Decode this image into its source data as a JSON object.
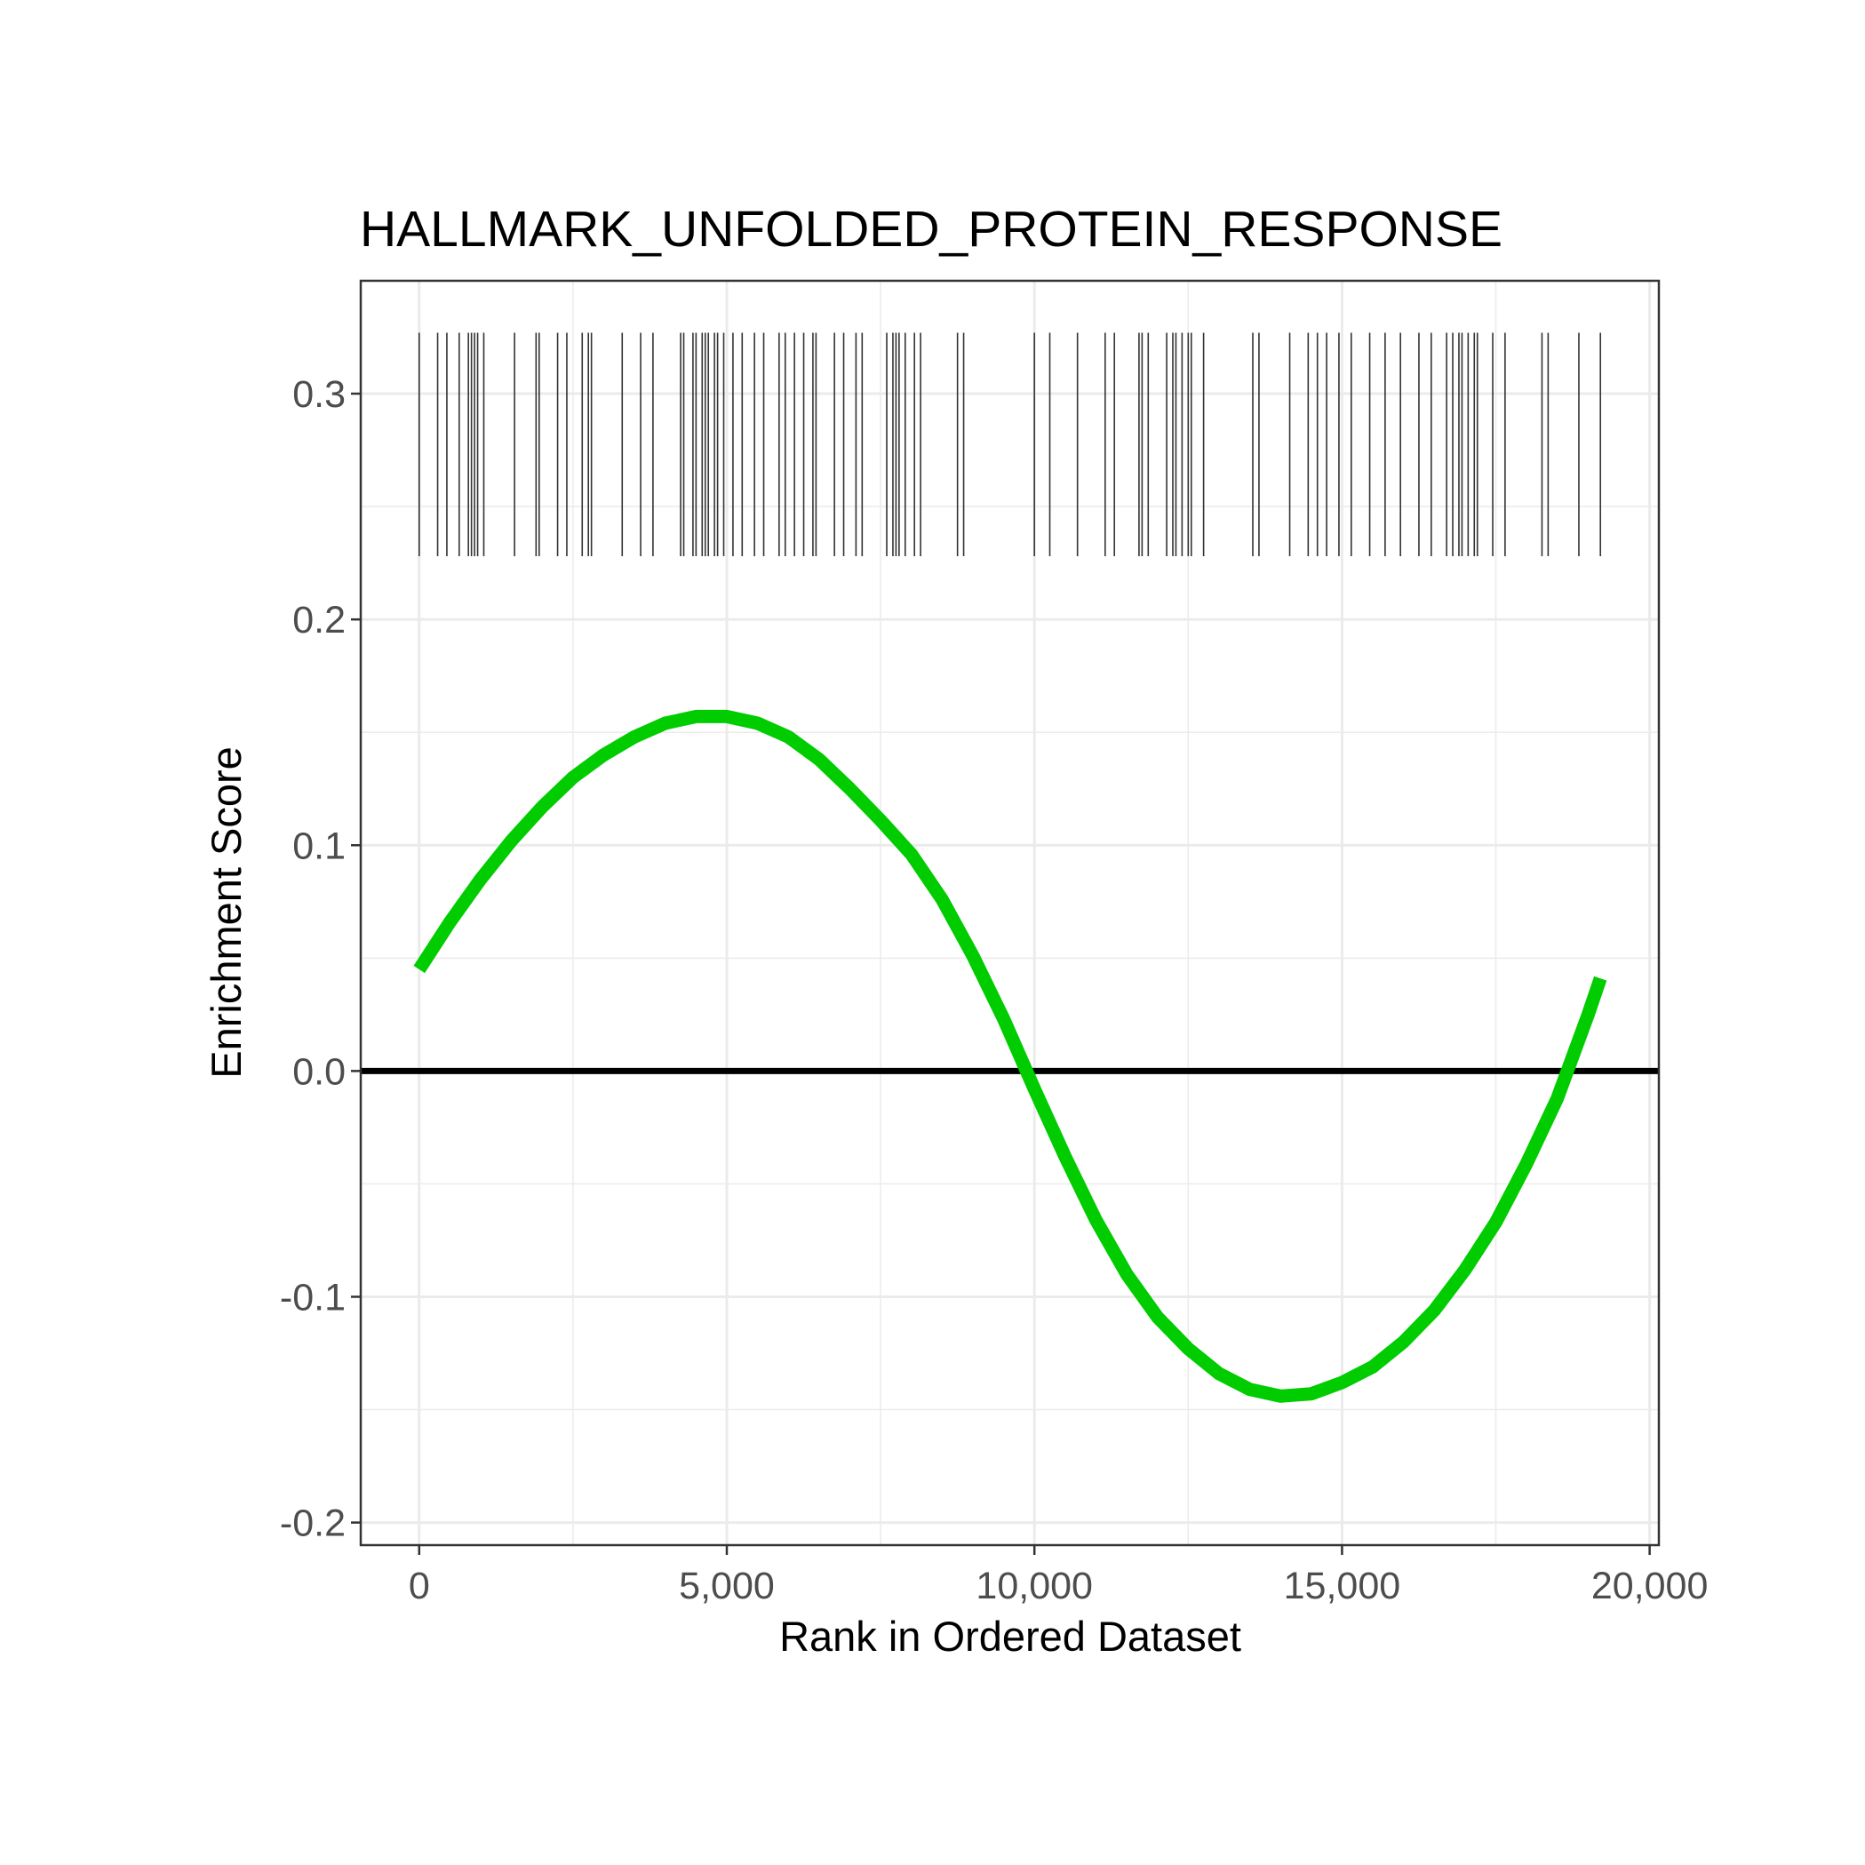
{
  "chart_data": {
    "type": "line",
    "title": "HALLMARK_UNFOLDED_PROTEIN_RESPONSE",
    "xlabel": "Rank in Ordered Dataset",
    "ylabel": "Enrichment Score",
    "xlim": [
      -950,
      20150
    ],
    "ylim": [
      -0.21,
      0.35
    ],
    "x_ticks": [
      0,
      5000,
      10000,
      15000,
      20000
    ],
    "x_tick_labels": [
      "0",
      "5,000",
      "10,000",
      "15,000",
      "20,000"
    ],
    "y_ticks": [
      -0.2,
      -0.1,
      0.0,
      0.1,
      0.2,
      0.3
    ],
    "y_tick_labels": [
      "-0.2",
      "-0.1",
      "0.0",
      "0.1",
      "0.2",
      "0.3"
    ],
    "grid": true,
    "legend": "none",
    "colors": {
      "line": "#00cc00",
      "hits": "#333333",
      "zero_line": "#000000"
    },
    "series": [
      {
        "x": [
          0,
          500,
          1000,
          1500,
          2000,
          2500,
          3000,
          3500,
          4000,
          4500,
          5000,
          5500,
          6000,
          6500,
          7000,
          7500,
          8000,
          8500,
          9000,
          9500,
          10000,
          10500,
          11000,
          11500,
          12000,
          12500,
          13000,
          13500,
          14000,
          14500,
          15000,
          15500,
          16000,
          16500,
          17000,
          17500,
          18000,
          18500,
          19000,
          19200
        ],
        "y": [
          0.045,
          0.066,
          0.085,
          0.102,
          0.117,
          0.13,
          0.14,
          0.148,
          0.154,
          0.157,
          0.157,
          0.154,
          0.148,
          0.138,
          0.125,
          0.111,
          0.096,
          0.076,
          0.051,
          0.023,
          -0.008,
          -0.038,
          -0.066,
          -0.09,
          -0.109,
          -0.123,
          -0.134,
          -0.141,
          -0.144,
          -0.143,
          -0.138,
          -0.131,
          -0.12,
          -0.106,
          -0.088,
          -0.067,
          -0.041,
          -0.012,
          0.025,
          0.041
        ]
      }
    ],
    "hits": [
      0,
      300,
      450,
      650,
      800,
      850,
      900,
      950,
      1050,
      1550,
      1900,
      1950,
      2250,
      2400,
      2650,
      2750,
      2800,
      3300,
      3600,
      3800,
      4250,
      4300,
      4450,
      4500,
      4600,
      4650,
      4700,
      4800,
      4850,
      4950,
      5100,
      5250,
      5450,
      5600,
      5850,
      5950,
      6100,
      6250,
      6400,
      6450,
      6750,
      6900,
      7100,
      7200,
      7600,
      7700,
      7750,
      7800,
      7900,
      8050,
      8150,
      8750,
      8850,
      10000,
      10250,
      10700,
      11150,
      11300,
      11700,
      11750,
      11850,
      12150,
      12250,
      12300,
      12400,
      12500,
      12550,
      12750,
      13550,
      13650,
      14150,
      14450,
      14600,
      14750,
      14950,
      15150,
      15450,
      15700,
      15950,
      16250,
      16450,
      16700,
      16800,
      16900,
      16950,
      17050,
      17150,
      17200,
      17450,
      17650,
      18250,
      18350,
      18850,
      19200
    ]
  }
}
